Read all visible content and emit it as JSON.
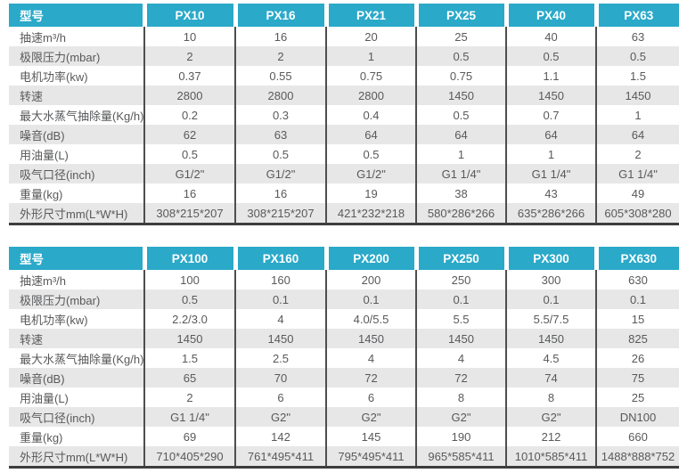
{
  "colors": {
    "header_bg": "#2aa9c9",
    "row_alt_bg": "#e7e7e7",
    "grid_line": "#4e4e4e",
    "body_text": "#58595b",
    "header_text": "#ffffff",
    "bottom_border": "#3d3d3d"
  },
  "tables": [
    {
      "name": "px10-px63",
      "header": [
        "型号",
        "PX10",
        "PX16",
        "PX21",
        "PX25",
        "PX40",
        "PX63"
      ],
      "rows": [
        [
          "抽速m³/h",
          "10",
          "16",
          "20",
          "25",
          "40",
          "63"
        ],
        [
          "极限压力(mbar)",
          "2",
          "2",
          "1",
          "0.5",
          "0.5",
          "0.5"
        ],
        [
          "电机功率(kw)",
          "0.37",
          "0.55",
          "0.75",
          "0.75",
          "1.1",
          "1.5"
        ],
        [
          "转速",
          "2800",
          "2800",
          "2800",
          "1450",
          "1450",
          "1450"
        ],
        [
          "最大水蒸气抽除量(Kg/h)",
          "0.2",
          "0.3",
          "0.4",
          "0.5",
          "0.7",
          "1"
        ],
        [
          "噪音(dB)",
          "62",
          "63",
          "64",
          "64",
          "64",
          "64"
        ],
        [
          "用油量(L)",
          "0.5",
          "0.5",
          "0.5",
          "1",
          "1",
          "2"
        ],
        [
          "吸气口径(inch)",
          "G1/2\"",
          "G1/2\"",
          "G1/2\"",
          "G1 1/4\"",
          "G1 1/4\"",
          "G1 1/4\""
        ],
        [
          "重量(kg)",
          "16",
          "16",
          "19",
          "38",
          "43",
          "49"
        ],
        [
          "外形尺寸mm(L*W*H)",
          "308*215*207",
          "308*215*207",
          "421*232*218",
          "580*286*266",
          "635*286*266",
          "605*308*280"
        ]
      ]
    },
    {
      "name": "px100-px630",
      "header": [
        "型号",
        "PX100",
        "PX160",
        "PX200",
        "PX250",
        "PX300",
        "PX630"
      ],
      "rows": [
        [
          "抽速m³/h",
          "100",
          "160",
          "200",
          "250",
          "300",
          "630"
        ],
        [
          "极限压力(mbar)",
          "0.5",
          "0.1",
          "0.1",
          "0.1",
          "0.1",
          "0.1"
        ],
        [
          "电机功率(kw)",
          "2.2/3.0",
          "4",
          "4.0/5.5",
          "5.5",
          "5.5/7.5",
          "15"
        ],
        [
          "转速",
          "1450",
          "1450",
          "1450",
          "1450",
          "1450",
          "825"
        ],
        [
          "最大水蒸气抽除量(Kg/h)",
          "1.5",
          "2.5",
          "4",
          "4",
          "4.5",
          "26"
        ],
        [
          "噪音(dB)",
          "65",
          "70",
          "72",
          "72",
          "74",
          "75"
        ],
        [
          "用油量(L)",
          "2",
          "6",
          "6",
          "8",
          "8",
          "25"
        ],
        [
          "吸气口径(inch)",
          "G1 1/4\"",
          "G2\"",
          "G2\"",
          "G2\"",
          "G2\"",
          "DN100"
        ],
        [
          "重量(kg)",
          "69",
          "142",
          "145",
          "190",
          "212",
          "660"
        ],
        [
          "外形尺寸mm(L*W*H)",
          "710*405*290",
          "761*495*411",
          "795*495*411",
          "965*585*411",
          "1010*585*411",
          "1488*888*752"
        ]
      ]
    }
  ]
}
